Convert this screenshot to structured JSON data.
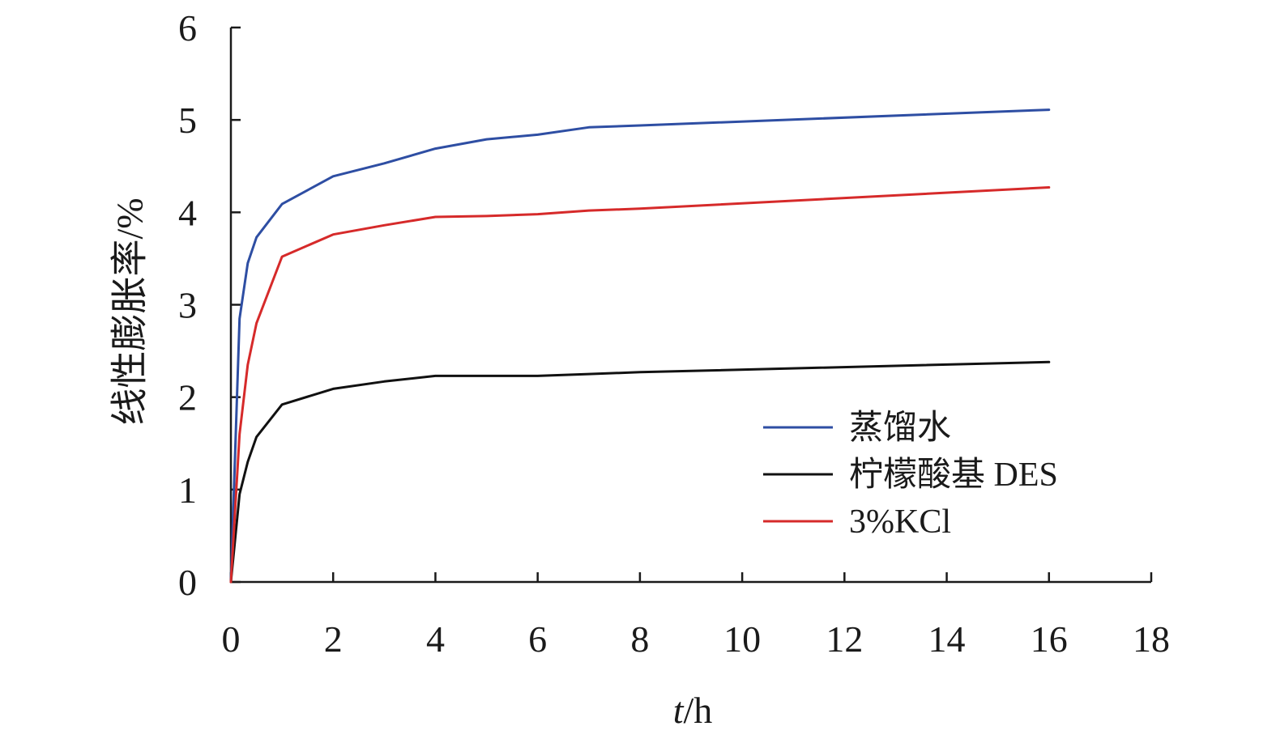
{
  "chart_data": {
    "type": "line",
    "xlabel_italic": "t",
    "xlabel_unit": "/h",
    "ylabel": "线性膨胀率/%",
    "xlim": [
      0,
      18
    ],
    "ylim": [
      0,
      6
    ],
    "x_ticks": [
      0,
      2,
      4,
      6,
      8,
      10,
      12,
      14,
      16,
      18
    ],
    "y_ticks": [
      0,
      1,
      2,
      3,
      4,
      5,
      6
    ],
    "grid": false,
    "legend_position": "lower-right",
    "series": [
      {
        "name": "蒸馏水",
        "color": "#2e4ea3",
        "points": [
          [
            0,
            0
          ],
          [
            0.17,
            2.85
          ],
          [
            0.33,
            3.45
          ],
          [
            0.5,
            3.73
          ],
          [
            1,
            4.09
          ],
          [
            2,
            4.39
          ],
          [
            3,
            4.53
          ],
          [
            4,
            4.69
          ],
          [
            5,
            4.79
          ],
          [
            6,
            4.84
          ],
          [
            7,
            4.92
          ],
          [
            8,
            4.94
          ],
          [
            16,
            5.11
          ]
        ]
      },
      {
        "name": "柠檬酸基 DES",
        "color": "#111111",
        "points": [
          [
            0,
            0
          ],
          [
            0.17,
            0.95
          ],
          [
            0.33,
            1.3
          ],
          [
            0.5,
            1.57
          ],
          [
            1,
            1.92
          ],
          [
            2,
            2.09
          ],
          [
            3,
            2.17
          ],
          [
            4,
            2.23
          ],
          [
            5,
            2.23
          ],
          [
            6,
            2.23
          ],
          [
            7,
            2.25
          ],
          [
            8,
            2.27
          ],
          [
            16,
            2.38
          ]
        ]
      },
      {
        "name": "3%KCl",
        "color": "#d62a2a",
        "points": [
          [
            0,
            0
          ],
          [
            0.17,
            1.6
          ],
          [
            0.33,
            2.35
          ],
          [
            0.5,
            2.8
          ],
          [
            1,
            3.52
          ],
          [
            2,
            3.76
          ],
          [
            3,
            3.86
          ],
          [
            4,
            3.95
          ],
          [
            5,
            3.96
          ],
          [
            6,
            3.98
          ],
          [
            7,
            4.02
          ],
          [
            8,
            4.04
          ],
          [
            16,
            4.27
          ]
        ]
      }
    ]
  }
}
